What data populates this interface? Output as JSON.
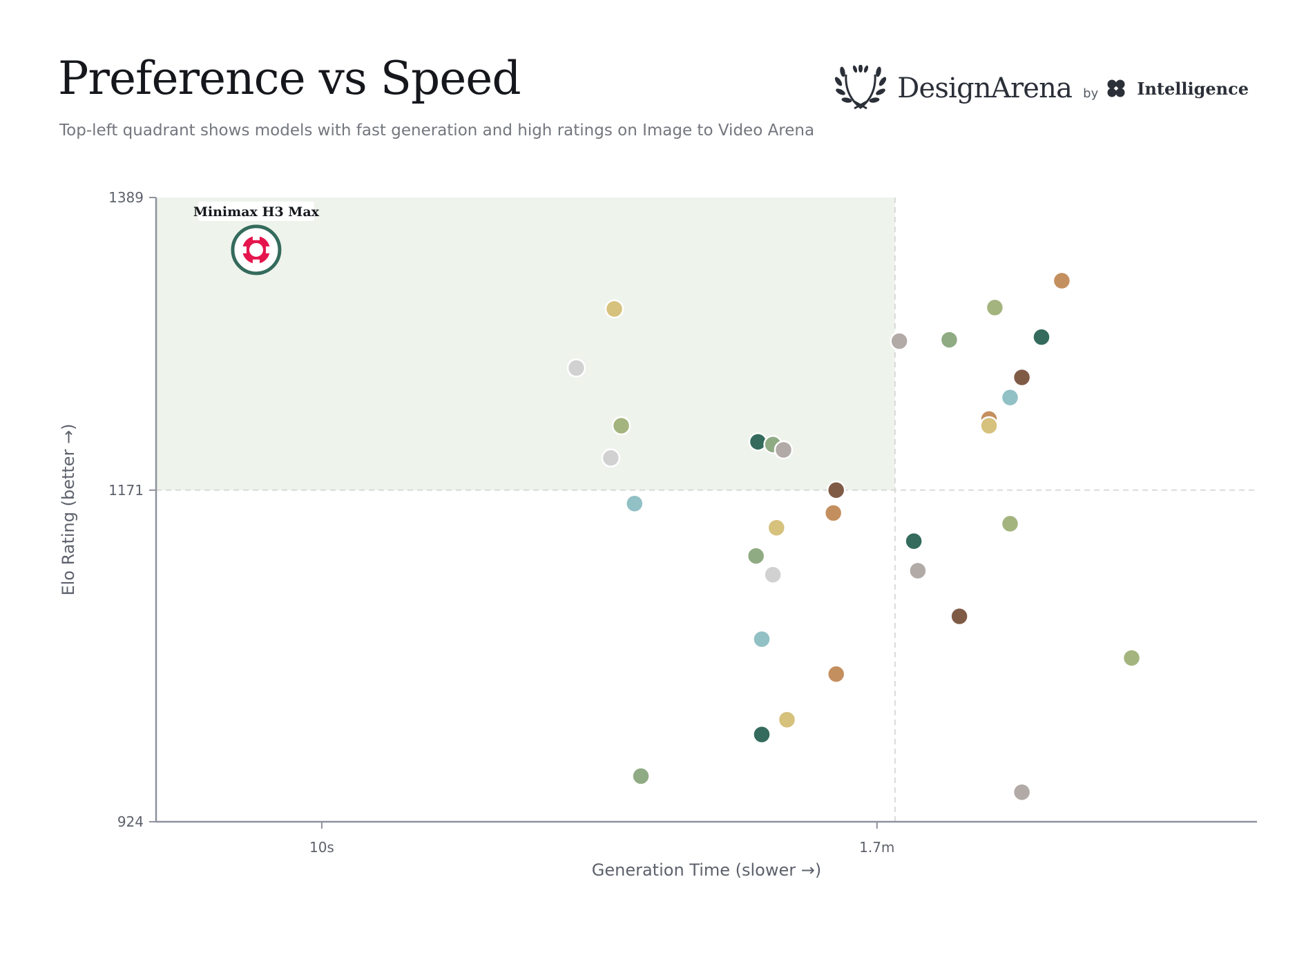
{
  "header": {
    "title": "Preference vs Speed",
    "subtitle": "Top-left quadrant shows models with fast generation and high ratings on Image to Video Arena"
  },
  "brand": {
    "name": "DesignArena",
    "by": "by",
    "partner": "Intelligence",
    "icon": "laurel-wreath-icon",
    "partner_icon": "clover-icon"
  },
  "chart_data": {
    "type": "scatter",
    "xlabel": "Generation Time (slower →)",
    "ylabel": "Elo Rating (better →)",
    "x_scale": "log",
    "x_unit": "seconds",
    "xlim": [
      5,
      500
    ],
    "ylim": [
      924,
      1389
    ],
    "x_ticks": [
      {
        "value": 10,
        "label": "10s"
      },
      {
        "value": 102,
        "label": "1.7m"
      }
    ],
    "y_ticks": [
      {
        "value": 924,
        "label": "924"
      },
      {
        "value": 1171,
        "label": "1171"
      },
      {
        "value": 1389,
        "label": "1389"
      }
    ],
    "quadrant": {
      "x_threshold": 110,
      "y_threshold": 1171,
      "highlight": "top-left",
      "color": "#eef3ec"
    },
    "grid": false,
    "legend": "none",
    "highlight_point": {
      "label": "Minimax H3 Max",
      "x": 7.6,
      "y": 1350,
      "ring_color": "#346b5c",
      "icon": "minimax-logo-icon",
      "icon_color": "#e5154d"
    },
    "points": [
      {
        "x": 34,
        "y": 1306,
        "color": "#d6c17d"
      },
      {
        "x": 29,
        "y": 1262,
        "color": "#d1d1d1"
      },
      {
        "x": 35,
        "y": 1219,
        "color": "#a4b47e"
      },
      {
        "x": 33.5,
        "y": 1195,
        "color": "#d1d1d1"
      },
      {
        "x": 62,
        "y": 1207,
        "color": "#346b5c"
      },
      {
        "x": 66,
        "y": 1205,
        "color": "#8fab84"
      },
      {
        "x": 69,
        "y": 1201,
        "color": "#b1aaa6"
      },
      {
        "x": 86,
        "y": 1171,
        "color": "#7f5b46"
      },
      {
        "x": 85,
        "y": 1154,
        "color": "#c48f5e"
      },
      {
        "x": 37,
        "y": 1161,
        "color": "#91c0c5"
      },
      {
        "x": 67,
        "y": 1143,
        "color": "#d6c17d"
      },
      {
        "x": 61.5,
        "y": 1122,
        "color": "#8fab84"
      },
      {
        "x": 66,
        "y": 1108,
        "color": "#d1d1d1"
      },
      {
        "x": 63,
        "y": 1060,
        "color": "#91c0c5"
      },
      {
        "x": 86,
        "y": 1034,
        "color": "#c48f5e"
      },
      {
        "x": 70,
        "y": 1000,
        "color": "#d6c17d"
      },
      {
        "x": 63,
        "y": 989,
        "color": "#346b5c"
      },
      {
        "x": 38,
        "y": 958,
        "color": "#8fab84"
      },
      {
        "x": 112,
        "y": 1282,
        "color": "#b1aaa6"
      },
      {
        "x": 138,
        "y": 1283,
        "color": "#8fab84"
      },
      {
        "x": 167,
        "y": 1307,
        "color": "#a4b47e"
      },
      {
        "x": 221,
        "y": 1327,
        "color": "#c48f5e"
      },
      {
        "x": 203,
        "y": 1285,
        "color": "#346b5c"
      },
      {
        "x": 187,
        "y": 1255,
        "color": "#7f5b46"
      },
      {
        "x": 178,
        "y": 1240,
        "color": "#91c0c5"
      },
      {
        "x": 163,
        "y": 1224,
        "color": "#c48f5e"
      },
      {
        "x": 163,
        "y": 1219,
        "color": "#d6c17d"
      },
      {
        "x": 178,
        "y": 1146,
        "color": "#a4b47e"
      },
      {
        "x": 119,
        "y": 1133,
        "color": "#346b5c"
      },
      {
        "x": 121,
        "y": 1111,
        "color": "#b1aaa6"
      },
      {
        "x": 144,
        "y": 1077,
        "color": "#7f5b46"
      },
      {
        "x": 296,
        "y": 1046,
        "color": "#a4b47e"
      },
      {
        "x": 187,
        "y": 946,
        "color": "#b1aaa6"
      }
    ]
  }
}
